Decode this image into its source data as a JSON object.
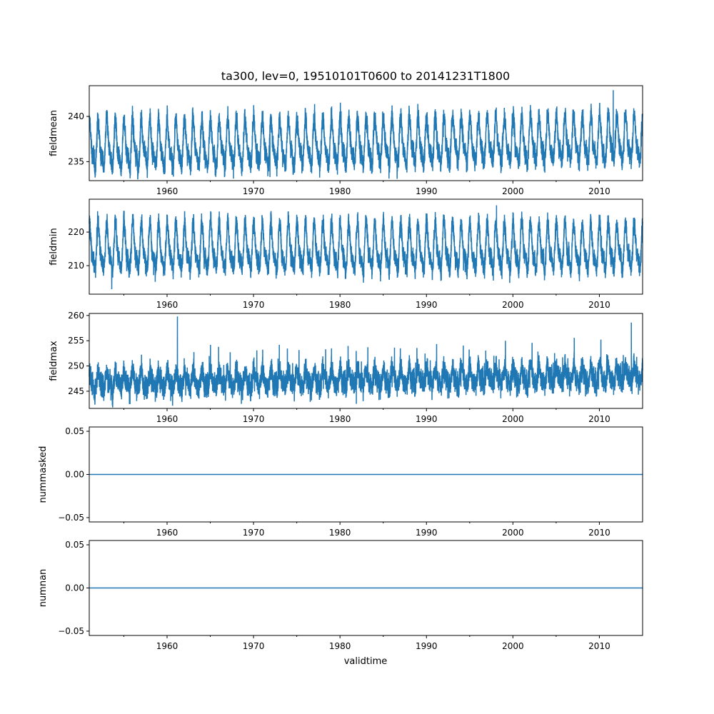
{
  "chart_data": {
    "type": "line",
    "title": "ta300, lev=0, 19510101T0600 to 20141231T1800",
    "xlabel": "validtime",
    "xlim": [
      1951,
      2015
    ],
    "x_ticks": [
      1960,
      1970,
      1980,
      1990,
      2000,
      2010
    ],
    "x_minor_ticks": [
      1955,
      1965,
      1975,
      1985,
      1995,
      2005
    ],
    "series_color": "#1f77b4",
    "panels": [
      {
        "ylabel": "fieldmean",
        "ylim": [
          232.9,
          243.4
        ],
        "y_ticks": [
          235,
          240
        ],
        "y_tick_labels": [
          "235",
          "240"
        ],
        "mean": 237.0,
        "annual_amplitude": 2.2,
        "noise": 0.8,
        "typical_range": [
          234,
          241.5
        ],
        "extremes": [
          {
            "x": 1971.9,
            "y": 233.3
          },
          {
            "x": 2011.6,
            "y": 242.9
          }
        ],
        "trend_per_decade": 0.12
      },
      {
        "ylabel": "fieldmin",
        "ylim": [
          201.5,
          229.8
        ],
        "y_ticks": [
          210,
          220
        ],
        "y_tick_labels": [
          "210",
          "220"
        ],
        "mean": 215.0,
        "annual_amplitude": 6.0,
        "noise": 2.0,
        "typical_range": [
          205,
          225
        ],
        "extremes": [
          {
            "x": 1953.6,
            "y": 203.0
          },
          {
            "x": 1998.1,
            "y": 228.0
          }
        ],
        "trend_per_decade": 0.0
      },
      {
        "ylabel": "fieldmax",
        "ylim": [
          241.6,
          260.4
        ],
        "y_ticks": [
          245,
          250,
          255,
          260
        ],
        "y_tick_labels": [
          "245",
          "250",
          "255",
          "260"
        ],
        "mean": 247.5,
        "annual_amplitude": 1.5,
        "noise": 1.6,
        "typical_range": [
          244,
          252
        ],
        "extremes": [
          {
            "x": 1961.2,
            "y": 259.8
          },
          {
            "x": 1981.9,
            "y": 242.5
          },
          {
            "x": 2013.7,
            "y": 258.6
          }
        ],
        "trend_per_decade": 0.2
      },
      {
        "ylabel": "nummasked",
        "ylim": [
          -0.055,
          0.055
        ],
        "y_ticks": [
          -0.05,
          0.0,
          0.05
        ],
        "y_tick_labels": [
          "−0.05",
          "0.00",
          "0.05"
        ],
        "constant": 0.0
      },
      {
        "ylabel": "numnan",
        "ylim": [
          -0.055,
          0.055
        ],
        "y_ticks": [
          -0.05,
          0.0,
          0.05
        ],
        "y_tick_labels": [
          "−0.05",
          "0.00",
          "0.05"
        ],
        "constant": 0.0
      }
    ]
  }
}
